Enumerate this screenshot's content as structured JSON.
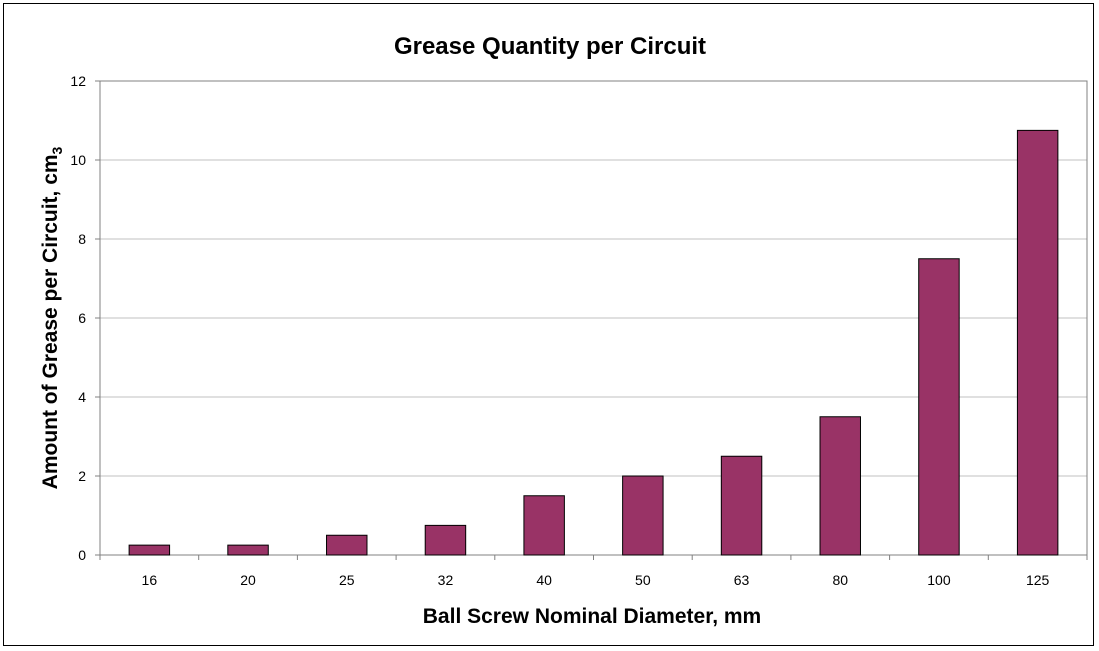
{
  "chart_data": {
    "type": "bar",
    "title": "Grease Quantity per Circuit",
    "xlabel": "Ball Screw Nominal Diameter, mm",
    "ylabel": "Amount of Grease per Circuit, cm",
    "ylabel_sub": "3",
    "categories": [
      "16",
      "20",
      "25",
      "32",
      "40",
      "50",
      "63",
      "80",
      "100",
      "125"
    ],
    "values": [
      0.25,
      0.25,
      0.5,
      0.75,
      1.5,
      2,
      2.5,
      3.5,
      7.5,
      10.75
    ],
    "ylim": [
      0,
      12
    ],
    "yticks": [
      0,
      2,
      4,
      6,
      8,
      10,
      12
    ],
    "grid": true,
    "legend": "none",
    "bar_color": "#993366",
    "grid_color": "#c0c0c0"
  }
}
